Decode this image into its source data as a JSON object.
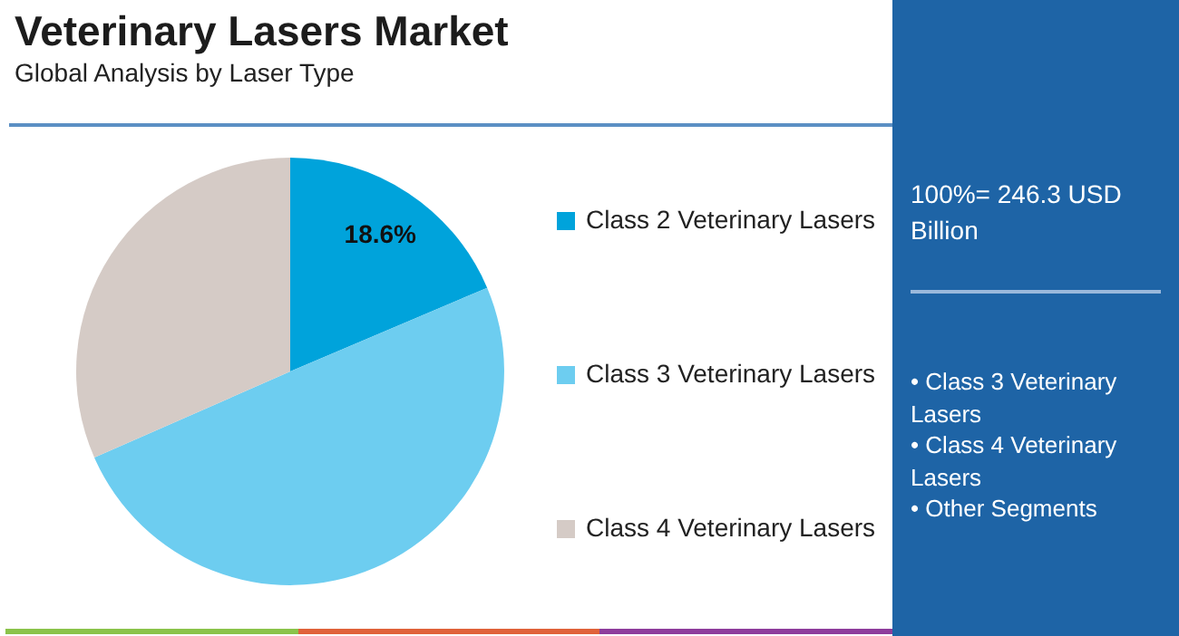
{
  "chart_data": {
    "type": "pie",
    "title": "Veterinary Lasers Market",
    "subtitle": "Global Analysis by Laser Type",
    "categories": [
      "Class 2 Veterinary Lasers",
      "Class 3 Veterinary Lasers",
      "Class 4 Veterinary Lasers"
    ],
    "values": [
      18.6,
      49.8,
      31.6
    ],
    "colors": [
      "#00a3db",
      "#6dcdf0",
      "#d5cbc6"
    ],
    "value_labels": [
      "18.6%",
      null,
      null
    ],
    "legend": "right",
    "annotations": [
      "100%= 246.3 USD Billion",
      "• Class 3 Veterinary Lasers",
      "• Class 4 Veterinary Lasers",
      "• Other Segments"
    ]
  }
}
